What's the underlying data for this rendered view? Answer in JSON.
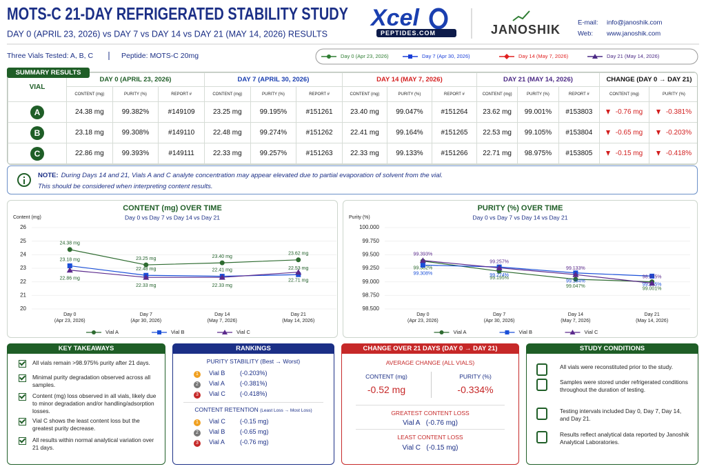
{
  "header": {
    "title": "MOTS-C 21-DAY REFRIGERATED STABILITY STUDY",
    "subtitle": "DAY 0 (APRIL 23, 2026) vs DAY 7 vs DAY 14 vs DAY 21 (MAY 14, 2026) RESULTS",
    "logo": "Xcel",
    "logo_sub": "PEPTIDES.COM",
    "lab": "JANOSHIK",
    "contact": [
      {
        "label": "E-mail:",
        "value": "info@janoshik.com"
      },
      {
        "label": "Web:",
        "value": "www.janoshik.com"
      }
    ],
    "vials": "Three Vials Tested: A, B, C",
    "peptide": "Peptide: MOTS-C 20mg"
  },
  "legend": [
    {
      "name": "Day 0 (Apr 23, 2026)",
      "color": "#2e7d32",
      "marker": "circle"
    },
    {
      "name": "Day 7 (Apr 30, 2026)",
      "color": "#1a3fd8",
      "marker": "square"
    },
    {
      "name": "Day 14 (May 7, 2026)",
      "color": "#e02020",
      "marker": "diamond"
    },
    {
      "name": "Day 21 (May 14, 2026)",
      "color": "#4b2a85",
      "marker": "triangle"
    }
  ],
  "table": {
    "tab": "SUMMARY RESULTS",
    "vial_header": "VIAL",
    "groups": [
      {
        "title": "DAY 0 (APRIL 23, 2026)",
        "color": "#1f5e27",
        "columns": [
          "CONTENT (mg)",
          "PURITY (%)",
          "REPORT #"
        ]
      },
      {
        "title": "DAY 7 (APRIL 30, 2026)",
        "color": "#1a3fb0",
        "columns": [
          "CONTENT (mg)",
          "PURITY (%)",
          "REPORT #"
        ]
      },
      {
        "title": "DAY 14 (MAY 7, 2026)",
        "color": "#d42020",
        "columns": [
          "CONTENT (mg)",
          "PURITY (%)",
          "REPORT #"
        ]
      },
      {
        "title": "DAY 21 (MAY 14, 2026)",
        "color": "#4b2a85",
        "columns": [
          "CONTENT (mg)",
          "PURITY (%)",
          "REPORT #"
        ]
      },
      {
        "title": "CHANGE (DAY 0 → DAY 21)",
        "color": "#111111",
        "columns": [
          "CONTENT (mg)",
          "PURITY (%)"
        ]
      }
    ],
    "rows": [
      [
        "A",
        "24.38 mg",
        "99.382%",
        "#149109",
        "23.25 mg",
        "99.195%",
        "#151261",
        "23.40 mg",
        "99.047%",
        "#151264",
        "23.62 mg",
        "99.001%",
        "#153803",
        "-0.76 mg",
        "-0.381%"
      ],
      [
        "B",
        "23.18 mg",
        "99.308%",
        "#149110",
        "22.48 mg",
        "99.274%",
        "#151262",
        "22.41 mg",
        "99.164%",
        "#151265",
        "22.53 mg",
        "99.105%",
        "#153804",
        "-0.65 mg",
        "-0.203%"
      ],
      [
        "C",
        "22.86 mg",
        "99.393%",
        "#149111",
        "22.33 mg",
        "99.257%",
        "#151263",
        "22.33 mg",
        "99.133%",
        "#151266",
        "22.71 mg",
        "98.975%",
        "#153805",
        "-0.15 mg",
        "-0.418%"
      ]
    ]
  },
  "note": {
    "label": "NOTE:",
    "lines": [
      "During Days 14 and 21, Vials A and C analyte concentration may appear elevated due to partial evaporation of solvent from the vial.",
      "This should be considered when interpreting content results."
    ]
  },
  "chart_data": [
    {
      "type": "line",
      "title": "CONTENT (mg) OVER TIME",
      "subtitle": "Day 0 vs Day 7 vs Day 14 vs Day 21",
      "y_label": "Content (mg)",
      "categories": [
        "Day 0",
        "Day 7",
        "Day 14",
        "Day 21"
      ],
      "category_dates": [
        "(Apr 23, 2026)",
        "(Apr 30, 2026)",
        "(May 7, 2026)",
        "(May 14, 2026)"
      ],
      "ylim": [
        20,
        26
      ],
      "yticks": [
        20,
        21,
        22,
        23,
        24,
        25,
        26
      ],
      "grid": true,
      "series": [
        {
          "name": "Vial A",
          "color": "#2e6b30",
          "marker": "circle",
          "values": [
            24.38,
            23.25,
            23.4,
            23.62
          ],
          "value_labels": [
            "24.38 mg",
            "23.25 mg",
            "23.40 mg",
            "23.62 mg"
          ]
        },
        {
          "name": "Vial B",
          "color": "#1a4fd8",
          "marker": "square",
          "values": [
            23.18,
            22.48,
            22.41,
            22.53
          ],
          "value_labels": [
            "23.18 mg",
            "22.48 mg",
            "22.41 mg",
            "22.53 mg"
          ]
        },
        {
          "name": "Vial C",
          "color": "#5b2a8c",
          "marker": "triangle",
          "values": [
            22.86,
            22.33,
            22.33,
            22.71
          ],
          "value_labels": [
            "22.86 mg",
            "22.33 mg",
            "22.33 mg",
            "22.71 mg"
          ]
        }
      ]
    },
    {
      "type": "line",
      "title": "PURITY (%) OVER TIME",
      "subtitle": "Day 0 vs Day 7 vs Day 14 vs Day 21",
      "y_label": "Purity (%)",
      "categories": [
        "Day 0",
        "Day 7",
        "Day 14",
        "Day 21"
      ],
      "category_dates": [
        "(Apr 23, 2026)",
        "(Apr 30, 2026)",
        "(May 7, 2026)",
        "(May 14, 2026)"
      ],
      "ylim": [
        98.5,
        100
      ],
      "yticks": [
        {
          "value": 98.5,
          "label": "98.500"
        },
        {
          "value": 98.75,
          "label": "98.750"
        },
        {
          "value": 99,
          "label": "99.000"
        },
        {
          "value": 99.25,
          "label": "99.250"
        },
        {
          "value": 99.5,
          "label": "99.500"
        },
        {
          "value": 99.75,
          "label": "99.750"
        },
        {
          "value": 100,
          "label": "100.000"
        }
      ],
      "grid": true,
      "series": [
        {
          "name": "Vial A",
          "color": "#2e6b30",
          "marker": "circle",
          "values": [
            99.382,
            99.195,
            99.047,
            99.001
          ],
          "value_labels": [
            "99.382%",
            "99.195%",
            "99.047%",
            "99.001%"
          ]
        },
        {
          "name": "Vial B",
          "color": "#1a4fd8",
          "marker": "square",
          "values": [
            99.308,
            99.274,
            99.164,
            99.105
          ],
          "value_labels": [
            "99.308%",
            "99.274%",
            "99.164%",
            "99.105%"
          ]
        },
        {
          "name": "Vial C",
          "color": "#5b2a8c",
          "marker": "triangle",
          "values": [
            99.393,
            99.257,
            99.133,
            98.975
          ],
          "value_labels": [
            "99.393%",
            "99.257%",
            "99.133%",
            "98.975%"
          ]
        }
      ]
    }
  ],
  "takeaways": {
    "title": "KEY TAKEAWAYS",
    "items": [
      "All vials remain >98.975% purity after 21 days.",
      "Minimal purity degradation observed across all samples.",
      "Content (mg) loss observed in all vials, likely due to minor degradation and/or handling/adsorption losses.",
      "Vial C shows the least content loss but the greatest purity decrease.",
      "All results within normal analytical variation over 21 days."
    ]
  },
  "rankings": {
    "title": "RANKINGS",
    "groups": [
      {
        "title": "PURITY STABILITY",
        "qualifier": "(Best → Worst)",
        "items": [
          {
            "rank": "1",
            "name": "Vial B",
            "change": "(-0.203%)"
          },
          {
            "rank": "2",
            "name": "Vial A",
            "change": "(-0.381%)"
          },
          {
            "rank": "3",
            "name": "Vial C",
            "change": "(-0.418%)"
          }
        ]
      },
      {
        "title": "CONTENT RETENTION",
        "qualifier": "(Least Loss → Most Loss)",
        "items": [
          {
            "rank": "1",
            "name": "Vial C",
            "change": "(-0.15 mg)"
          },
          {
            "rank": "2",
            "name": "Vial B",
            "change": "(-0.65 mg)"
          },
          {
            "rank": "3",
            "name": "Vial A",
            "change": "(-0.76 mg)"
          }
        ]
      }
    ]
  },
  "change": {
    "title": "CHANGE OVER 21 DAYS (DAY 0 → DAY 21)",
    "average_label": "AVERAGE CHANGE (ALL VIALS)",
    "content_label": "CONTENT (mg)",
    "content_value": "-0.52 mg",
    "purity_label": "PURITY (%)",
    "purity_value": "-0.334%",
    "greatest_label": "GREATEST CONTENT LOSS",
    "greatest_vial": "Vial A",
    "greatest_value": "(-0.76 mg)",
    "least_label": "LEAST CONTENT LOSS",
    "least_vial": "Vial C",
    "least_value": "(-0.15 mg)"
  },
  "conditions": {
    "title": "STUDY CONDITIONS",
    "items": [
      "All vials were reconstituted prior to the study.",
      "Samples were stored under refrigerated conditions throughout the duration of testing.",
      "Testing intervals included Day 0, Day 7, Day 14, and Day 21.",
      "Results reflect analytical data reported by Janoshik Analytical Laboratories."
    ]
  }
}
